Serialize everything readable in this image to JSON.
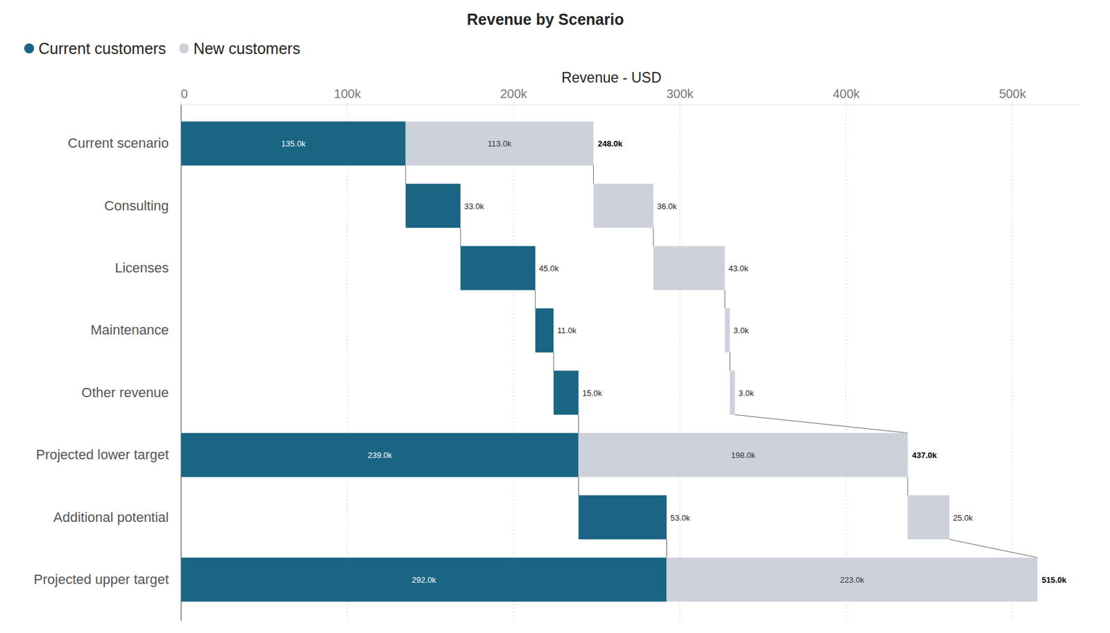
{
  "chart_data": {
    "type": "waterfall",
    "title": "Revenue by Scenario",
    "x_label": "Revenue - USD",
    "orientation": "horizontal",
    "stacked": true,
    "data_labels": true,
    "grid": true,
    "legend": "top-left",
    "categories": [
      "Current scenario",
      "Consulting",
      "Licenses",
      "Maintenance",
      "Other revenue",
      "Projected lower target",
      "Additional potential",
      "Projected upper target"
    ],
    "series": [
      {
        "name": "Current customers",
        "color": "#1a6583",
        "values": [
          135000,
          33000,
          45000,
          11000,
          15000,
          239000,
          53000,
          292000
        ],
        "value_labels": [
          "135.0k",
          "33.0k",
          "45.0k",
          "11.0k",
          "15.0k",
          "239.0k",
          "53.0k",
          "292.0k"
        ]
      },
      {
        "name": "New customers",
        "color": "#cdd1da",
        "values": [
          113000,
          36000,
          43000,
          3000,
          3000,
          198000,
          25000,
          223000
        ],
        "value_labels": [
          "113.0k",
          "36.0k",
          "43.0k",
          "3.0k",
          "3.0k",
          "198.0k",
          "25.0k",
          "223.0k"
        ]
      }
    ],
    "totals": [
      248000,
      null,
      null,
      null,
      null,
      437000,
      null,
      515000
    ],
    "totals_labels": [
      "248.0k",
      null,
      null,
      null,
      null,
      "437.0k",
      null,
      "515.0k"
    ],
    "xlim": [
      0,
      540000
    ],
    "xticks": [
      0,
      {
        "value": 100000,
        "label": "100k"
      },
      {
        "value": 200000,
        "label": "200k"
      },
      {
        "value": 300000,
        "label": "300k"
      },
      {
        "value": 400000,
        "label": "400k"
      },
      {
        "value": 500000,
        "label": "500k"
      }
    ]
  }
}
